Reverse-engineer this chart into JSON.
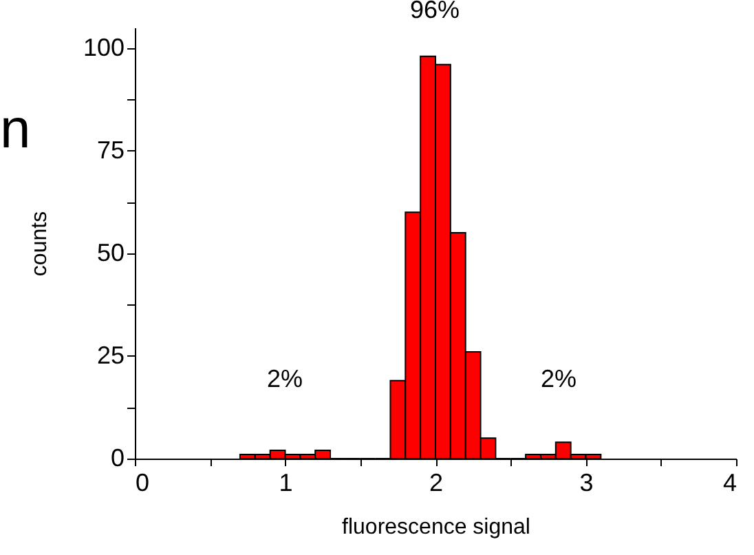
{
  "chart_data": {
    "type": "histogram",
    "xlabel": "fluorescence signal",
    "ylabel": "counts",
    "bins": [
      0.7,
      0.8,
      0.9,
      1.0,
      1.1,
      1.2,
      1.3,
      1.4,
      1.5,
      1.6,
      1.7,
      1.8,
      1.9,
      2.0,
      2.1,
      2.2,
      2.3,
      2.4,
      2.5,
      2.6,
      2.7,
      2.8,
      2.9,
      3.0,
      3.1
    ],
    "values": [
      1,
      1,
      2,
      1,
      1,
      2,
      0,
      0,
      0,
      0,
      19,
      60,
      98,
      96,
      55,
      26,
      5,
      0,
      0,
      1,
      1,
      4,
      1,
      1
    ],
    "color": "#ff0000",
    "xlim": [
      0,
      4
    ],
    "ylim": [
      0,
      105
    ],
    "xticks": [
      0,
      {
        "value": 0.5,
        "label": null
      },
      1,
      {
        "value": 1.5,
        "label": null
      },
      2,
      {
        "value": 2.5,
        "label": null
      },
      3,
      {
        "value": 3.5,
        "label": null
      },
      4
    ],
    "yticks": [
      0,
      {
        "value": 12.5,
        "label": null
      },
      25,
      {
        "value": 37.5,
        "label": null
      },
      50,
      {
        "value": 62.5,
        "label": null
      },
      75,
      {
        "value": 87.5,
        "label": null
      },
      100
    ],
    "grid": false,
    "annotations": [
      "96%",
      "2%",
      "2%",
      "n"
    ]
  }
}
